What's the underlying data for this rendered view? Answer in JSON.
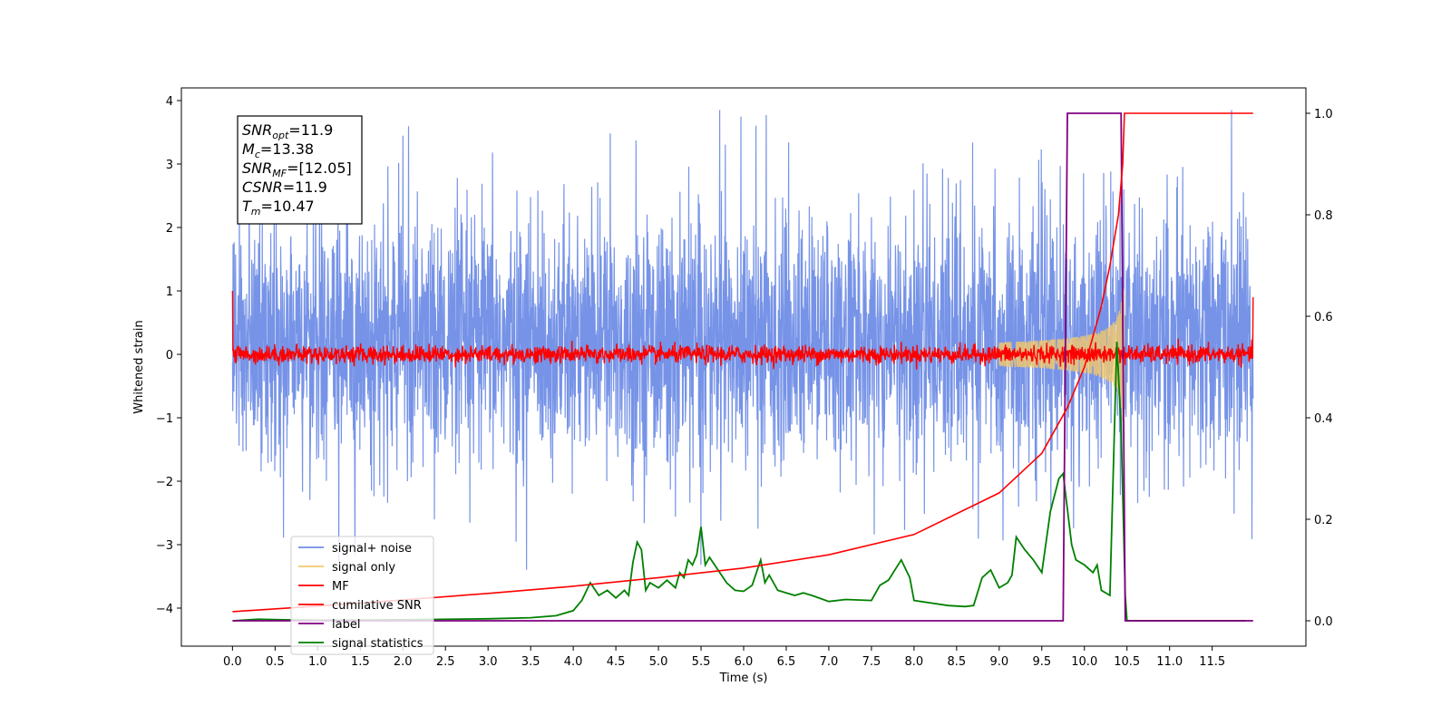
{
  "chart_data": {
    "type": "line",
    "xlabel": "Time (s)",
    "ylabel": "Whitened strain",
    "xlim": [
      -0.6,
      12.6
    ],
    "ylim": [
      -4.6,
      4.2
    ],
    "y2lim": [
      -0.05,
      1.05
    ],
    "x_ticks": [
      0.0,
      0.5,
      1.0,
      1.5,
      2.0,
      2.5,
      3.0,
      3.5,
      4.0,
      4.5,
      5.0,
      5.5,
      6.0,
      6.5,
      7.0,
      7.5,
      8.0,
      8.5,
      9.0,
      9.5,
      10.0,
      10.5,
      11.0,
      11.5
    ],
    "x_tick_labels": [
      "0.0",
      "0.5",
      "1.0",
      "1.5",
      "2.0",
      "2.5",
      "3.0",
      "3.5",
      "4.0",
      "4.5",
      "5.0",
      "5.5",
      "6.0",
      "6.5",
      "7.0",
      "7.5",
      "8.0",
      "8.5",
      "9.0",
      "9.5",
      "10.0",
      "10.5",
      "11.0",
      "11.5"
    ],
    "y_ticks": [
      -4,
      -3,
      -2,
      -1,
      0,
      1,
      2,
      3,
      4
    ],
    "y_tick_labels": [
      "−4",
      "−3",
      "−2",
      "−1",
      "0",
      "1",
      "2",
      "3",
      "4"
    ],
    "y2_ticks": [
      0.0,
      0.2,
      0.4,
      0.6,
      0.8,
      1.0
    ],
    "y2_tick_labels": [
      "0.0",
      "0.2",
      "0.4",
      "0.6",
      "0.8",
      "1.0"
    ],
    "grid": false,
    "legend_position": "lower-left",
    "legend": [
      {
        "name": "signal+ noise",
        "color": "#6f8de6"
      },
      {
        "name": "signal only",
        "color": "#f5c96b"
      },
      {
        "name": "MF",
        "color": "#ff0000"
      },
      {
        "name": "cumilative SNR",
        "color": "#ff0000"
      },
      {
        "name": "label",
        "color": "#800080"
      },
      {
        "name": "signal statistics",
        "color": "#008000"
      }
    ],
    "series": [
      {
        "name": "signal+ noise",
        "axis": "left",
        "color": "#6f8de6",
        "description": "Gaussian-like whitened noise spanning 0.0 to 11.98 s, typical envelope about -1.8 to 2.2, peaks near 3.8 and -3.8"
      },
      {
        "name": "signal only",
        "axis": "left",
        "color": "#f5c96b",
        "chirp_start": 9.0,
        "chirp_end": 10.47,
        "max_amplitude": 1.05
      },
      {
        "name": "MF",
        "axis": "left",
        "color": "#ff0000",
        "description": "matched-filter output around 0 with amplitude about 0.15, edge spikes to 1.0 at t=0.0 and 0.9 at t=11.98"
      },
      {
        "name": "cumilative SNR",
        "axis": "right",
        "x": [
          0.0,
          1.0,
          2.0,
          3.0,
          4.0,
          5.0,
          6.0,
          7.0,
          8.0,
          9.0,
          9.5,
          9.8,
          10.0,
          10.2,
          10.3,
          10.4,
          10.45,
          10.47,
          10.5,
          11.98
        ],
        "values": [
          0.018,
          0.029,
          0.041,
          0.054,
          0.068,
          0.085,
          0.104,
          0.13,
          0.17,
          0.252,
          0.33,
          0.42,
          0.5,
          0.62,
          0.7,
          0.8,
          0.9,
          1.0,
          1.0,
          1.0
        ]
      },
      {
        "name": "label",
        "axis": "right",
        "x": [
          0.0,
          9.75,
          9.8,
          10.43,
          10.48,
          11.98
        ],
        "values": [
          0.0,
          0.0,
          1.0,
          1.0,
          0.0,
          0.0
        ]
      },
      {
        "name": "signal statistics",
        "axis": "right",
        "x": [
          0.0,
          0.3,
          0.6,
          1.0,
          2.0,
          3.0,
          3.5,
          3.8,
          4.0,
          4.1,
          4.2,
          4.3,
          4.4,
          4.5,
          4.6,
          4.65,
          4.7,
          4.75,
          4.8,
          4.85,
          4.9,
          5.0,
          5.1,
          5.2,
          5.25,
          5.3,
          5.35,
          5.4,
          5.45,
          5.5,
          5.55,
          5.6,
          5.7,
          5.8,
          5.9,
          6.0,
          6.1,
          6.2,
          6.25,
          6.3,
          6.4,
          6.5,
          6.6,
          6.7,
          6.8,
          7.0,
          7.2,
          7.5,
          7.6,
          7.7,
          7.85,
          7.95,
          8.0,
          8.2,
          8.4,
          8.6,
          8.7,
          8.8,
          8.9,
          9.0,
          9.1,
          9.15,
          9.2,
          9.3,
          9.4,
          9.5,
          9.6,
          9.7,
          9.75,
          9.8,
          9.85,
          9.9,
          10.0,
          10.1,
          10.15,
          10.2,
          10.3,
          10.38,
          10.43,
          10.48,
          10.5,
          10.6,
          11.0,
          11.5,
          11.9
        ],
        "values": [
          0.0,
          0.003,
          0.002,
          0.001,
          0.002,
          0.004,
          0.006,
          0.01,
          0.02,
          0.04,
          0.075,
          0.05,
          0.06,
          0.045,
          0.06,
          0.05,
          0.115,
          0.155,
          0.14,
          0.06,
          0.075,
          0.065,
          0.08,
          0.065,
          0.095,
          0.085,
          0.12,
          0.11,
          0.13,
          0.185,
          0.11,
          0.125,
          0.1,
          0.075,
          0.06,
          0.058,
          0.07,
          0.12,
          0.075,
          0.09,
          0.06,
          0.055,
          0.05,
          0.055,
          0.05,
          0.038,
          0.042,
          0.04,
          0.07,
          0.08,
          0.12,
          0.085,
          0.04,
          0.035,
          0.03,
          0.028,
          0.03,
          0.085,
          0.1,
          0.065,
          0.075,
          0.09,
          0.165,
          0.14,
          0.12,
          0.095,
          0.215,
          0.28,
          0.29,
          0.22,
          0.15,
          0.12,
          0.11,
          0.095,
          0.11,
          0.06,
          0.05,
          0.55,
          0.38,
          0.05,
          0.0,
          0.0,
          0.0,
          0.0,
          0.0
        ]
      }
    ],
    "annotation_box": {
      "lines": [
        {
          "base": "SNR",
          "sub": "opt",
          "value": "=11.9"
        },
        {
          "base": "M",
          "sub": "c",
          "value": "=13.38"
        },
        {
          "base": "SNR",
          "sub": "MF",
          "value": "=[12.05]"
        },
        {
          "base": "CSNR",
          "sub": "",
          "value": "=11.9"
        },
        {
          "base": "T",
          "sub": "m",
          "value": "=10.47"
        }
      ]
    }
  }
}
